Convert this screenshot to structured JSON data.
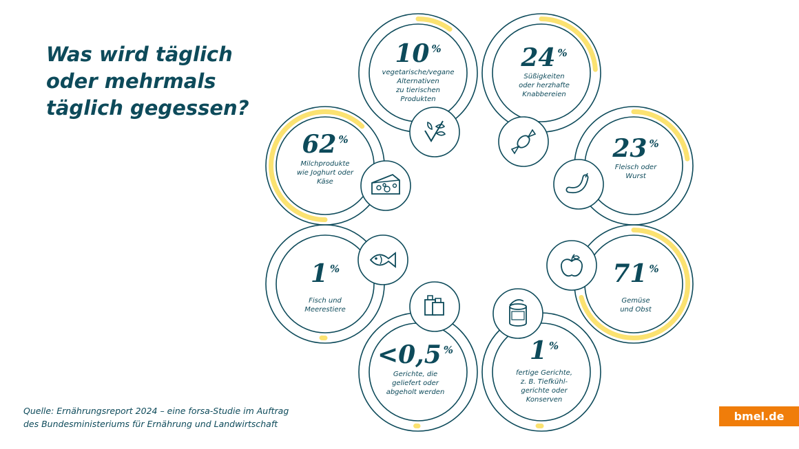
{
  "title_lines": [
    "Was wird täglich",
    "oder mehrmals",
    "täglich gegessen?"
  ],
  "source_lines": [
    "Quelle: Ernährungsreport 2024 – eine forsa-Studie im Auftrag",
    "des Bundesministeriums für Ernährung und Landwirtschaft"
  ],
  "brand": "bmel.de",
  "colors": {
    "text": "#0d4a5a",
    "ring": "#0d4a5a",
    "accent": "#fbe271",
    "brand": "#f07d0a"
  },
  "chart_data": {
    "type": "radial-progress",
    "title": "Was wird täglich oder mehrmals täglich gegessen?",
    "unit": "%",
    "items": [
      {
        "label_lines": [
          "vegetarische/vegane",
          "Alternativen",
          "zu tierischen",
          "Produkten"
        ],
        "display": "10",
        "value": 10,
        "icon": "plant-check-icon"
      },
      {
        "label_lines": [
          "Süßigkeiten",
          "oder herzhafte",
          "Knabbereien"
        ],
        "display": "24",
        "value": 24,
        "icon": "candy-icon"
      },
      {
        "label_lines": [
          "Fleisch oder",
          "Wurst"
        ],
        "display": "23",
        "value": 23,
        "icon": "sausage-icon"
      },
      {
        "label_lines": [
          "Gemüse",
          "und Obst"
        ],
        "display": "71",
        "value": 71,
        "icon": "apple-icon"
      },
      {
        "label_lines": [
          "fertige Gerichte,",
          "z. B. Tiefkühl-",
          "gerichte oder",
          "Konserven"
        ],
        "display": "1",
        "value": 1,
        "icon": "can-icon"
      },
      {
        "label_lines": [
          "Gerichte, die",
          "geliefert oder",
          "abgeholt werden"
        ],
        "display": "<0,5",
        "value": 0.5,
        "icon": "takeaway-bag-icon"
      },
      {
        "label_lines": [
          "Fisch und",
          "Meerestiere"
        ],
        "display": "1",
        "value": 1,
        "icon": "fish-icon"
      },
      {
        "label_lines": [
          "Milchprodukte",
          "wie Joghurt oder",
          "Käse"
        ],
        "display": "62",
        "value": 62,
        "icon": "cheese-icon"
      }
    ]
  }
}
